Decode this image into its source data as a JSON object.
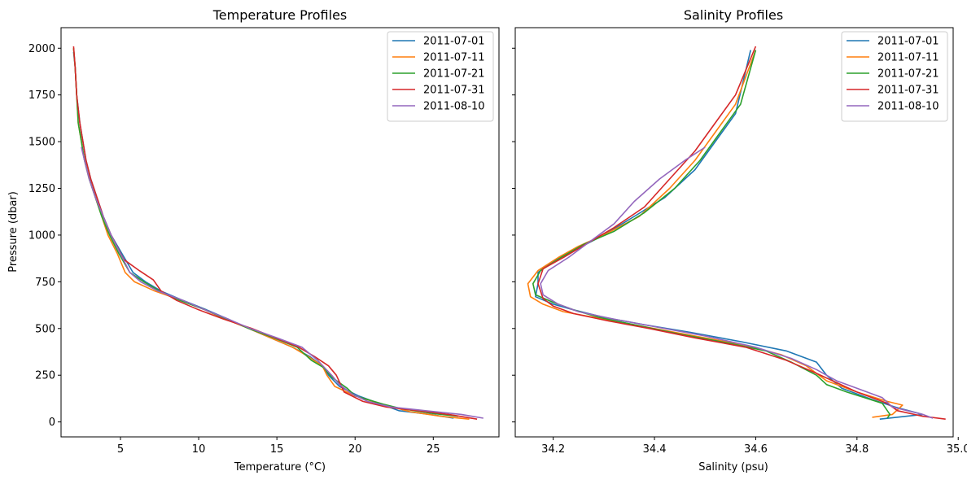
{
  "colors": {
    "blue": "#1f77b4",
    "orange": "#ff7f0e",
    "green": "#2ca02c",
    "red": "#d62728",
    "purple": "#9467bd"
  },
  "chart_data": [
    {
      "type": "line",
      "title": "Temperature Profiles",
      "xlabel": "Temperature (°C)",
      "ylabel": "Pressure (dbar)",
      "xlim": [
        1.2,
        29.2
      ],
      "ylim": [
        -80,
        2110
      ],
      "xticks": [
        5,
        10,
        15,
        20,
        25
      ],
      "yticks": [
        0,
        250,
        500,
        750,
        1000,
        1250,
        1500,
        1750,
        2000
      ],
      "grid": false,
      "legend": "top-right",
      "series": [
        {
          "name": "2011-07-01",
          "color": "#1f77b4",
          "x": [
            26.3,
            24.8,
            22.8,
            21.5,
            20.2,
            19.0,
            18.3,
            17.9,
            17.1,
            16.0,
            14.6,
            13.2,
            11.9,
            10.5,
            9.0,
            7.6,
            6.6,
            5.8,
            5.1,
            4.4,
            3.9,
            3.5,
            3.1,
            2.8,
            2.6,
            2.4,
            2.2,
            2.1,
            2.0
          ],
          "y": [
            20,
            40,
            60,
            100,
            140,
            190,
            250,
            300,
            350,
            400,
            450,
            500,
            550,
            600,
            650,
            700,
            750,
            800,
            900,
            1000,
            1100,
            1200,
            1300,
            1400,
            1500,
            1600,
            1750,
            1900,
            1980
          ]
        },
        {
          "name": "2011-07-11",
          "color": "#ff7f0e",
          "x": [
            27.3,
            25.5,
            23.5,
            21.5,
            20.0,
            18.7,
            18.2,
            17.9,
            17.0,
            16.0,
            14.6,
            13.2,
            11.7,
            10.4,
            8.9,
            7.2,
            5.9,
            5.3,
            4.8,
            4.2,
            3.8,
            3.4,
            3.0,
            2.7,
            2.5,
            2.3,
            2.2,
            2.1,
            2.0
          ],
          "y": [
            15,
            30,
            55,
            100,
            140,
            190,
            250,
            300,
            350,
            400,
            450,
            500,
            550,
            600,
            650,
            700,
            750,
            800,
            900,
            1000,
            1100,
            1200,
            1300,
            1400,
            1500,
            1600,
            1750,
            1900,
            2000
          ]
        },
        {
          "name": "2011-07-21",
          "color": "#2ca02c",
          "x": [
            26.6,
            25.0,
            23.0,
            21.8,
            20.0,
            19.5,
            18.5,
            18.0,
            17.2,
            16.3,
            14.8,
            13.2,
            11.8,
            10.4,
            8.8,
            7.5,
            6.5,
            5.6,
            4.9,
            4.3,
            3.8,
            3.4,
            3.0,
            2.7,
            2.5,
            2.3,
            2.2,
            2.1,
            2.0
          ],
          "y": [
            30,
            45,
            70,
            95,
            140,
            180,
            240,
            290,
            330,
            400,
            450,
            500,
            550,
            600,
            650,
            700,
            750,
            800,
            900,
            1000,
            1100,
            1200,
            1300,
            1400,
            1500,
            1600,
            1750,
            1900,
            2000
          ]
        },
        {
          "name": "2011-07-31",
          "color": "#d62728",
          "x": [
            27.8,
            26.0,
            24.0,
            22.0,
            20.5,
            19.3,
            18.8,
            18.3,
            17.4,
            16.4,
            14.9,
            13.4,
            11.6,
            10.0,
            8.6,
            7.6,
            7.1,
            6.2,
            5.2,
            4.4,
            3.9,
            3.5,
            3.1,
            2.8,
            2.6,
            2.4,
            2.2,
            2.1,
            2.0
          ],
          "y": [
            15,
            40,
            60,
            80,
            110,
            160,
            250,
            300,
            350,
            400,
            450,
            500,
            550,
            600,
            650,
            700,
            760,
            810,
            870,
            1000,
            1100,
            1200,
            1300,
            1400,
            1500,
            1600,
            1750,
            1900,
            2010
          ]
        },
        {
          "name": "2011-08-10",
          "color": "#9467bd",
          "x": [
            28.2,
            26.8,
            24.5,
            22.3,
            20.8,
            19.8,
            19.0,
            18.5,
            17.6,
            16.6,
            15.0,
            13.3,
            11.9,
            10.4,
            9.0,
            7.4,
            6.3,
            5.6,
            5.0,
            4.4,
            3.9,
            3.4,
            3.0,
            2.7,
            2.5
          ],
          "y": [
            20,
            40,
            60,
            80,
            110,
            150,
            200,
            250,
            330,
            400,
            450,
            500,
            550,
            600,
            650,
            700,
            750,
            800,
            900,
            1000,
            1100,
            1200,
            1300,
            1400,
            1470
          ]
        }
      ]
    },
    {
      "type": "line",
      "title": "Salinity Profiles",
      "xlabel": "Salinity (psu)",
      "ylabel": "",
      "xlim": [
        34.125,
        34.99
      ],
      "ylim": [
        -80,
        2110
      ],
      "xticks": [
        34.2,
        34.4,
        34.6,
        34.8,
        35.0
      ],
      "xtick_labels": [
        "34.2",
        "34.4",
        "34.6",
        "34.8",
        "35.0"
      ],
      "yticks": [
        0,
        250,
        500,
        750,
        1000,
        1250,
        1500,
        1750,
        2000
      ],
      "grid": false,
      "legend": "top-right",
      "series": [
        {
          "name": "2011-07-01",
          "color": "#1f77b4",
          "x": [
            34.845,
            34.93,
            34.875,
            34.83,
            34.77,
            34.74,
            34.72,
            34.66,
            34.57,
            34.47,
            34.38,
            34.3,
            34.24,
            34.2,
            34.165,
            34.17,
            34.17,
            34.2,
            34.25,
            34.3,
            34.36,
            34.42,
            34.48,
            34.52,
            34.56,
            34.59
          ],
          "y": [
            15,
            40,
            80,
            120,
            180,
            250,
            320,
            380,
            430,
            480,
            520,
            560,
            600,
            630,
            670,
            740,
            800,
            860,
            930,
            1000,
            1100,
            1200,
            1350,
            1500,
            1650,
            1990
          ]
        },
        {
          "name": "2011-07-11",
          "color": "#ff7f0e",
          "x": [
            34.83,
            34.87,
            34.89,
            34.86,
            34.8,
            34.74,
            34.7,
            34.65,
            34.58,
            34.48,
            34.38,
            34.3,
            34.22,
            34.18,
            34.155,
            34.15,
            34.17,
            34.21,
            34.25,
            34.3,
            34.37,
            34.43,
            34.48,
            34.52,
            34.56,
            34.6
          ],
          "y": [
            25,
            40,
            90,
            110,
            160,
            220,
            300,
            360,
            410,
            460,
            510,
            550,
            590,
            630,
            670,
            740,
            810,
            880,
            940,
            1000,
            1100,
            1250,
            1400,
            1550,
            1700,
            1990
          ]
        },
        {
          "name": "2011-07-21",
          "color": "#2ca02c",
          "x": [
            34.86,
            34.865,
            34.85,
            34.78,
            34.74,
            34.72,
            34.67,
            34.62,
            34.55,
            34.45,
            34.36,
            34.29,
            34.24,
            34.2,
            34.165,
            34.16,
            34.175,
            34.215,
            34.26,
            34.32,
            34.38,
            34.44,
            34.49,
            34.53,
            34.57,
            34.6
          ],
          "y": [
            20,
            40,
            100,
            160,
            200,
            250,
            320,
            380,
            420,
            470,
            520,
            560,
            600,
            640,
            680,
            740,
            810,
            880,
            950,
            1020,
            1120,
            1250,
            1400,
            1550,
            1700,
            1990
          ]
        },
        {
          "name": "2011-07-31",
          "color": "#d62728",
          "x": [
            34.975,
            34.93,
            34.88,
            34.86,
            34.8,
            34.76,
            34.72,
            34.66,
            34.58,
            34.48,
            34.39,
            34.31,
            34.24,
            34.2,
            34.18,
            34.17,
            34.18,
            34.22,
            34.27,
            34.32,
            34.38,
            34.43,
            34.48,
            34.52,
            34.56,
            34.6
          ],
          "y": [
            15,
            30,
            60,
            100,
            160,
            210,
            260,
            330,
            400,
            450,
            500,
            540,
            580,
            620,
            660,
            740,
            820,
            880,
            960,
            1040,
            1150,
            1300,
            1450,
            1600,
            1750,
            2010
          ]
        },
        {
          "name": "2011-08-10",
          "color": "#9467bd",
          "x": [
            34.95,
            34.93,
            34.87,
            34.85,
            34.8,
            34.76,
            34.72,
            34.67,
            34.6,
            34.5,
            34.4,
            34.32,
            34.25,
            34.21,
            34.18,
            34.175,
            34.19,
            34.23,
            34.28,
            34.32,
            34.36,
            34.41,
            34.46,
            34.5
          ],
          "y": [
            20,
            40,
            80,
            130,
            180,
            220,
            280,
            340,
            400,
            460,
            510,
            550,
            590,
            630,
            680,
            740,
            810,
            880,
            980,
            1060,
            1180,
            1300,
            1400,
            1470
          ]
        }
      ]
    }
  ]
}
